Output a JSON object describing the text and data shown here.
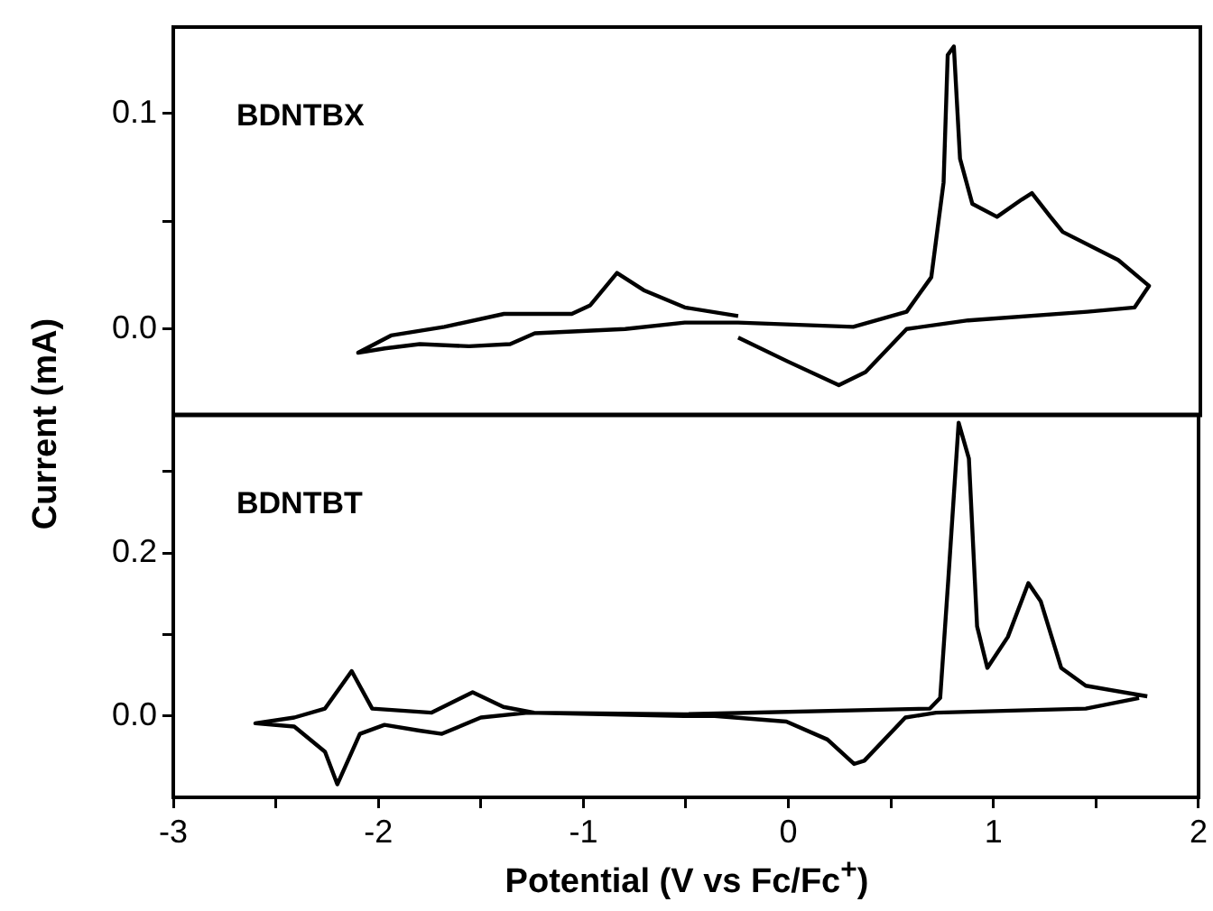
{
  "chart_data": [
    {
      "type": "line",
      "ylabel": "Current (mA)",
      "annotations": [
        "BDNTBX"
      ],
      "tick_labels": "y",
      "xlim": [
        -3,
        2
      ],
      "ylim": [
        -0.04,
        0.14
      ],
      "yticks": [
        {
          "value": 0,
          "label": "0.0"
        },
        {
          "value": 0.05,
          "label": null
        },
        {
          "value": 0.1,
          "label": "0.1"
        }
      ],
      "x": [
        -0.25,
        -0.01,
        0.24,
        0.37,
        0.57,
        0.87,
        1.45,
        1.68,
        1.75,
        1.6,
        1.33,
        1.27,
        1.18,
        1.13,
        1.01,
        0.89,
        0.83,
        0.8,
        0.77,
        0.75,
        0.69,
        0.57,
        0.31,
        -0.25,
        -0.51,
        -0.8,
        -1.24,
        -1.36,
        -1.56,
        -1.8,
        -1.97,
        -2.1,
        -1.94,
        -1.68,
        -1.39,
        -1.06,
        -0.97,
        -0.84,
        -0.71,
        -0.51,
        -0.25
      ],
      "series": [
        {
          "color": "#000000",
          "values": [
            -0.004,
            -0.015,
            -0.026,
            -0.02,
            0.0,
            0.004,
            0.008,
            0.01,
            0.02,
            0.032,
            0.045,
            0.052,
            0.063,
            0.06,
            0.052,
            0.058,
            0.079,
            0.131,
            0.127,
            0.068,
            0.024,
            0.008,
            0.001,
            0.003,
            0.003,
            0.0,
            -0.002,
            -0.007,
            -0.008,
            -0.007,
            -0.009,
            -0.011,
            -0.003,
            0.001,
            0.007,
            0.007,
            0.011,
            0.026,
            0.018,
            0.01,
            0.006
          ]
        }
      ]
    },
    {
      "type": "line",
      "xlabel": "Potential (V vs Fc/Fc$^{+}$)",
      "annotations": [
        "BDNTBT"
      ],
      "xlim": [
        -3,
        2
      ],
      "ylim": [
        -0.1,
        0.37
      ],
      "xticks": [
        -3,
        {
          "value": -2.5,
          "label": null
        },
        -2,
        {
          "value": -1.5,
          "label": null
        },
        -1,
        {
          "value": -0.5,
          "label": null
        },
        0,
        {
          "value": 0.5,
          "label": null
        },
        1,
        {
          "value": 1.5,
          "label": null
        },
        2
      ],
      "yticks": [
        {
          "value": 0,
          "label": "0.0"
        },
        {
          "value": 0.1,
          "label": null
        },
        {
          "value": 0.2,
          "label": "0.2"
        },
        {
          "value": 0.3,
          "label": null
        }
      ],
      "x": [
        1.71,
        1.45,
        0.72,
        0.57,
        0.37,
        0.32,
        0.19,
        -0.01,
        -0.36,
        -0.51,
        -1.27,
        -1.5,
        -1.69,
        -1.8,
        -1.97,
        -2.09,
        -2.2,
        -2.26,
        -2.41,
        -2.6,
        -2.41,
        -2.26,
        -2.13,
        -2.03,
        -1.74,
        -1.54,
        -1.39,
        -1.24,
        -0.51,
        0.69,
        0.74,
        0.78,
        0.83,
        0.88,
        0.92,
        0.97,
        1.07,
        1.17,
        1.23,
        1.33,
        1.45,
        1.75
      ],
      "series": [
        {
          "color": "#000000",
          "values": [
            0.022,
            0.009,
            0.004,
            -0.002,
            -0.055,
            -0.059,
            -0.029,
            -0.007,
            0.0,
            0.0,
            0.004,
            -0.002,
            -0.022,
            -0.018,
            -0.011,
            -0.022,
            -0.084,
            -0.044,
            -0.013,
            -0.009,
            -0.002,
            0.009,
            0.055,
            0.009,
            0.004,
            0.029,
            0.011,
            0.004,
            0.002,
            0.009,
            0.022,
            0.169,
            0.36,
            0.316,
            0.11,
            0.059,
            0.097,
            0.163,
            0.141,
            0.059,
            0.037,
            0.024
          ]
        }
      ]
    }
  ]
}
